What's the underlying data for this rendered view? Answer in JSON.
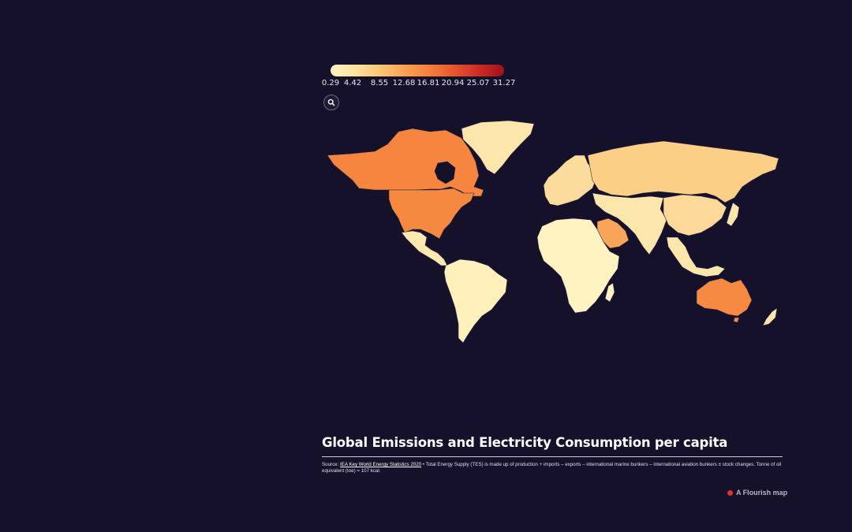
{
  "legend": {
    "ticks": [
      "0.29",
      "4.42",
      "8.55",
      "12.68",
      "16.81",
      "20.94",
      "25.07",
      "31.27"
    ],
    "gradient_colors": [
      "#fff3c2",
      "#fde2a0",
      "#fbc576",
      "#f9a252",
      "#f57e3d",
      "#e7552e",
      "#cc2a25",
      "#a3101f"
    ]
  },
  "search": {
    "icon": "search-icon"
  },
  "map_colors": {
    "background": "#16112a",
    "border": "#2a2340",
    "canada": "#f5853f",
    "usa": "#f4893f",
    "australia": "#f68a42",
    "saudi": "#f8a55a",
    "russia": "#fbcf85",
    "europe": "#fbdc9c",
    "greenland": "#fde6ac",
    "africa": "#fff3c2",
    "south_america": "#fff0bc",
    "asia": "#fde6ab",
    "china": "#fcd999",
    "gulf": "#f7a458",
    "mexico": "#fde8b0"
  },
  "title": "Global Emissions and Electricity Consumption per capita",
  "source": {
    "prefix": "Source: ",
    "link_text": "IEA Key World Energy Statistics 2020",
    "text": " • Total Energy Supply (TES) is made up of production + imports – exports – international marine bunkers – international aviation bunkers ± stock changes. Tonne of oil equivalent (toe) = 107 kcal."
  },
  "credit": "A Flourish map"
}
